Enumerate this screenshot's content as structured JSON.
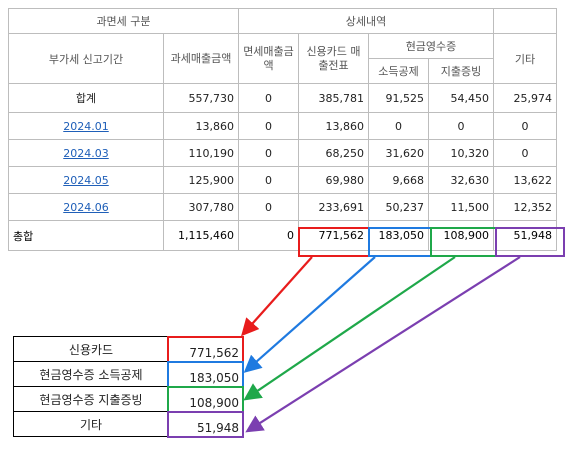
{
  "table": {
    "header_category": "과면세 구분",
    "header_detail": "상세내역",
    "header_cash_receipt": "현금영수증",
    "col_period": "부가세 신고기간",
    "col_taxable": "과세매출금액",
    "col_exempt": "면세매출금액",
    "col_card": "신용카드 매출전표",
    "col_income_deduction": "소득공제",
    "col_expense_proof": "지출증빙",
    "col_other": "기타",
    "sum_row": {
      "label": "합계",
      "taxable": "557,730",
      "exempt": "0",
      "card": "385,781",
      "income": "91,525",
      "expense": "54,450",
      "other": "25,974"
    },
    "rows": [
      {
        "period": "2024.01",
        "taxable": "13,860",
        "exempt": "0",
        "card": "13,860",
        "income": "0",
        "expense": "0",
        "other": "0"
      },
      {
        "period": "2024.03",
        "taxable": "110,190",
        "exempt": "0",
        "card": "68,250",
        "income": "31,620",
        "expense": "10,320",
        "other": "0"
      },
      {
        "period": "2024.05",
        "taxable": "125,900",
        "exempt": "0",
        "card": "69,980",
        "income": "9,668",
        "expense": "32,630",
        "other": "13,622"
      },
      {
        "period": "2024.06",
        "taxable": "307,780",
        "exempt": "0",
        "card": "233,691",
        "income": "50,237",
        "expense": "11,500",
        "other": "12,352"
      }
    ],
    "grand_total": {
      "label": "총합",
      "taxable": "1,115,460",
      "exempt": "0",
      "card": "771,562",
      "income": "183,050",
      "expense": "108,900",
      "other": "51,948"
    }
  },
  "summary": [
    {
      "label": "신용카드",
      "value": "771,562"
    },
    {
      "label": "현금영수증 소득공제",
      "value": "183,050"
    },
    {
      "label": "현금영수증 지출증빙",
      "value": "108,900"
    },
    {
      "label": "기타",
      "value": "51,948"
    }
  ],
  "colors": {
    "card": "#e81c1c",
    "income": "#1f7ae0",
    "expense": "#1fa84a",
    "other": "#7b3fb0"
  }
}
